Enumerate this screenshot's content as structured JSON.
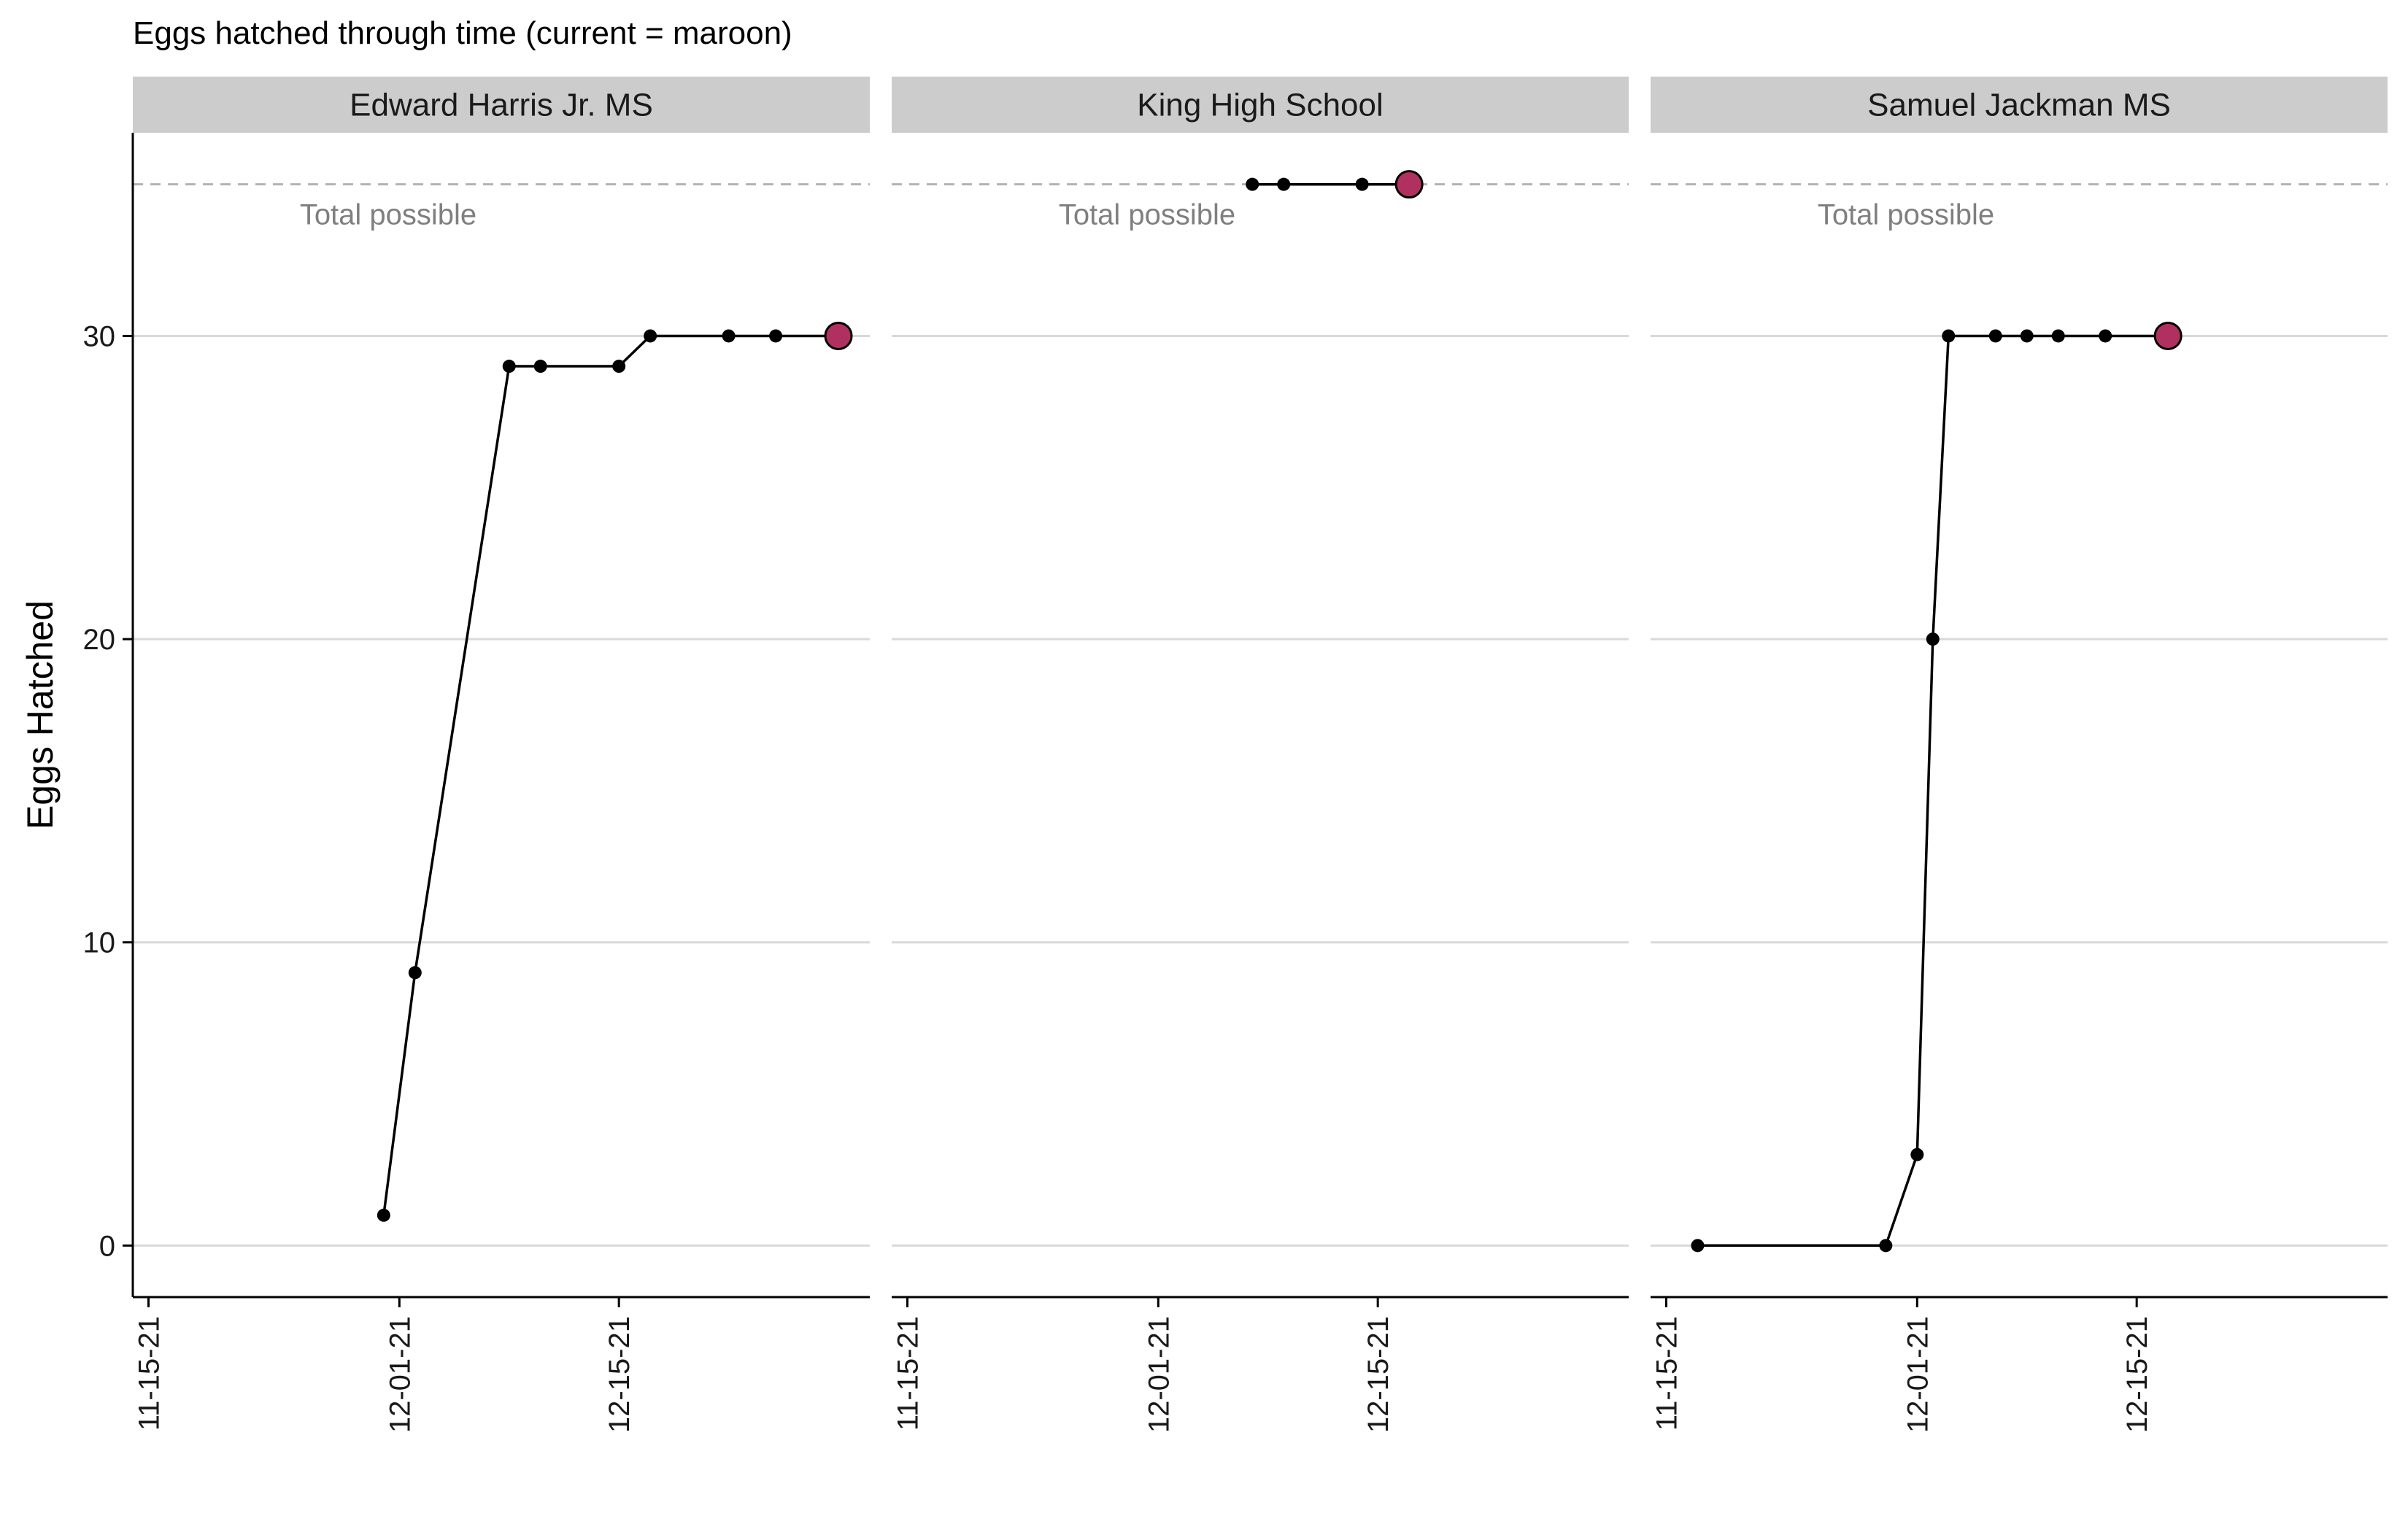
{
  "chart_data": {
    "type": "line",
    "title": "Eggs hatched through time (current = maroon)",
    "ylabel": "Eggs Hatched",
    "xlabel": "",
    "ylim": [
      -1.7,
      36.7
    ],
    "yticks": [
      0,
      10,
      20,
      30
    ],
    "xlim": [
      "2021-11-14",
      "2021-12-31"
    ],
    "xticks": [
      {
        "date": "2021-11-15",
        "label": "11-15-21"
      },
      {
        "date": "2021-12-01",
        "label": "12-01-21"
      },
      {
        "date": "2021-12-15",
        "label": "12-15-21"
      }
    ],
    "total_possible": 35,
    "total_possible_label": "Total possible",
    "grid": "horizontal major",
    "colors": {
      "line": "#000000",
      "current_point": "#B03060",
      "grid": "#d9d9d9",
      "reference_line": "#b3b3b3",
      "strip": "#cccccc"
    },
    "panels": [
      {
        "name": "Edward Harris Jr. MS",
        "points": [
          {
            "x": "2021-11-30",
            "y": 1
          },
          {
            "x": "2021-12-02",
            "y": 9
          },
          {
            "x": "2021-12-08",
            "y": 29
          },
          {
            "x": "2021-12-10",
            "y": 29
          },
          {
            "x": "2021-12-15",
            "y": 29
          },
          {
            "x": "2021-12-17",
            "y": 30
          },
          {
            "x": "2021-12-22",
            "y": 30
          },
          {
            "x": "2021-12-25",
            "y": 30
          }
        ],
        "current": {
          "x": "2021-12-29",
          "y": 30
        }
      },
      {
        "name": "King High School",
        "points": [
          {
            "x": "2021-12-07",
            "y": 35
          },
          {
            "x": "2021-12-09",
            "y": 35
          },
          {
            "x": "2021-12-14",
            "y": 35
          }
        ],
        "current": {
          "x": "2021-12-17",
          "y": 35
        }
      },
      {
        "name": "Samuel Jackman MS",
        "points": [
          {
            "x": "2021-11-17",
            "y": 0
          },
          {
            "x": "2021-11-29",
            "y": 0
          },
          {
            "x": "2021-12-01",
            "y": 3
          },
          {
            "x": "2021-12-02",
            "y": 20
          },
          {
            "x": "2021-12-03",
            "y": 30
          },
          {
            "x": "2021-12-06",
            "y": 30
          },
          {
            "x": "2021-12-08",
            "y": 30
          },
          {
            "x": "2021-12-10",
            "y": 30
          },
          {
            "x": "2021-12-13",
            "y": 30
          }
        ],
        "current": {
          "x": "2021-12-17",
          "y": 30
        }
      }
    ]
  }
}
